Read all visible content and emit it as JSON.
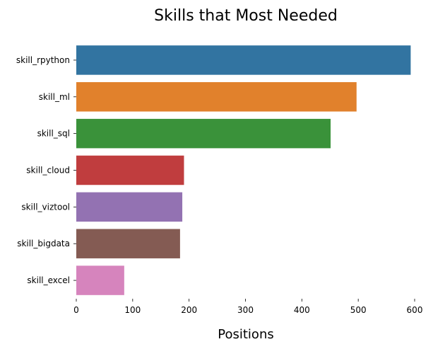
{
  "chart_data": {
    "type": "bar",
    "orientation": "horizontal",
    "title": "Skills that Most Needed",
    "xlabel": "Positions",
    "ylabel": "",
    "xlim": [
      0,
      600
    ],
    "xticks": [
      0,
      100,
      200,
      300,
      400,
      500,
      600
    ],
    "grid": false,
    "categories": [
      "skill_rpython",
      "skill_ml",
      "skill_sql",
      "skill_cloud",
      "skill_viztool",
      "skill_bigdata",
      "skill_excel"
    ],
    "values": [
      593,
      497,
      451,
      191,
      188,
      184,
      85
    ],
    "colors": [
      "#3274a1",
      "#e1812c",
      "#3a923a",
      "#c03d3e",
      "#9372b2",
      "#845b53",
      "#d684bd"
    ]
  }
}
